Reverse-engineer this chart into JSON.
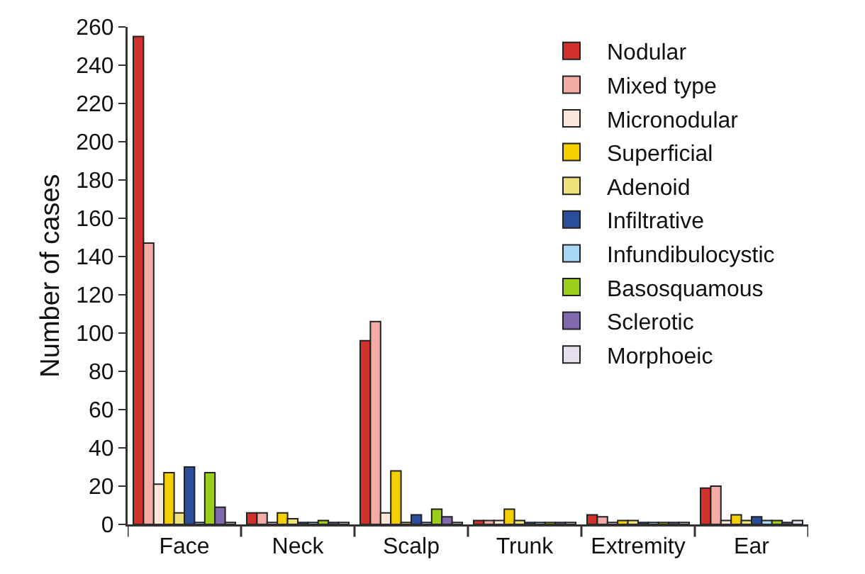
{
  "chart_data": {
    "type": "bar",
    "ylabel": "Number of cases",
    "categories": [
      "Face",
      "Neck",
      "Scalp",
      "Trunk",
      "Extremity",
      "Ear"
    ],
    "series": [
      {
        "name": "Nodular",
        "color": "#d0312d",
        "values": [
          255,
          6,
          96,
          2,
          5,
          19
        ]
      },
      {
        "name": "Mixed type",
        "color": "#f4aaa5",
        "values": [
          147,
          6,
          106,
          2,
          4,
          20
        ]
      },
      {
        "name": "Micronodular",
        "color": "#fde6dc",
        "values": [
          21,
          1,
          6,
          2,
          1,
          2
        ]
      },
      {
        "name": "Superficial",
        "color": "#f5d000",
        "values": [
          27,
          6,
          28,
          8,
          2,
          5
        ]
      },
      {
        "name": "Adenoid",
        "color": "#ece17a",
        "values": [
          6,
          3,
          1,
          2,
          2,
          2
        ]
      },
      {
        "name": "Infiltrative",
        "color": "#2a4d9c",
        "values": [
          30,
          1,
          5,
          1,
          1,
          4
        ]
      },
      {
        "name": "Infundibulocystic",
        "color": "#a8d8f4",
        "values": [
          1,
          1,
          1,
          1,
          1,
          2
        ]
      },
      {
        "name": "Basosquamous",
        "color": "#9acd1c",
        "values": [
          27,
          2,
          8,
          1,
          1,
          2
        ]
      },
      {
        "name": "Sclerotic",
        "color": "#8069ad",
        "values": [
          9,
          1,
          4,
          1,
          1,
          1
        ]
      },
      {
        "name": "Morphoeic",
        "color": "#e6e0ee",
        "values": [
          1,
          1,
          1,
          1,
          1,
          2
        ]
      }
    ],
    "ylim": [
      0,
      260
    ],
    "yticks": [
      0,
      20,
      40,
      60,
      80,
      100,
      120,
      140,
      160,
      180,
      200,
      220,
      240,
      260
    ],
    "grid": false,
    "legend": "top right"
  }
}
